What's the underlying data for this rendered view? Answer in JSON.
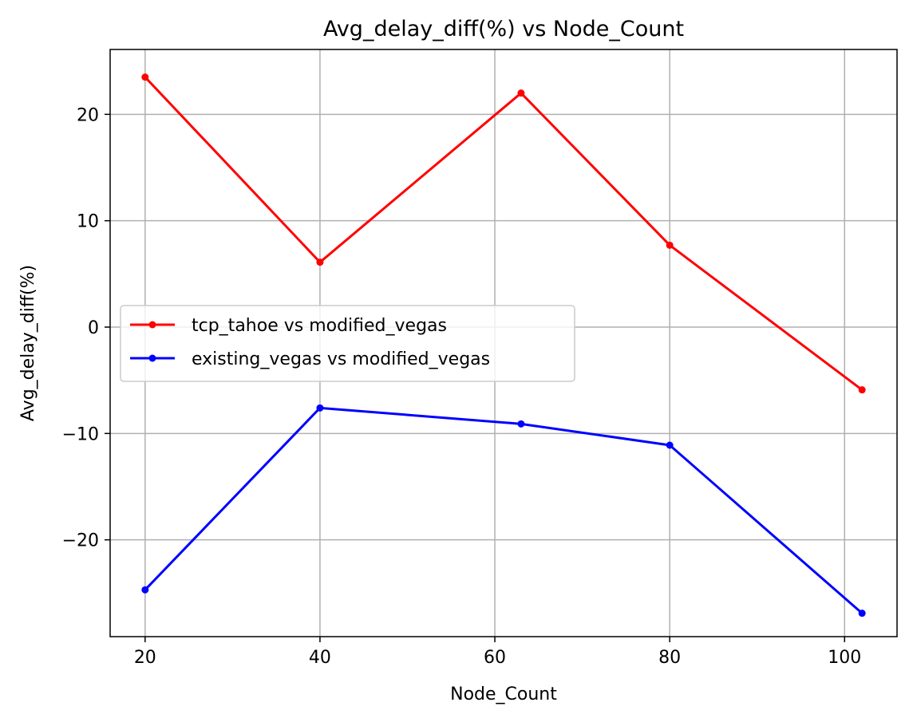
{
  "chart_data": {
    "type": "line",
    "title": "Avg_delay_diff(%) vs Node_Count",
    "xlabel": "Node_Count",
    "ylabel": "Avg_delay_diff(%)",
    "x": [
      20,
      40,
      63,
      80,
      102
    ],
    "xlim": [
      16,
      106
    ],
    "ylim": [
      -29.1,
      26.1
    ],
    "xticks": [
      20,
      40,
      60,
      80,
      100
    ],
    "xtick_labels": [
      "20",
      "40",
      "60",
      "80",
      "100"
    ],
    "yticks": [
      20,
      10,
      0,
      -10,
      -20
    ],
    "ytick_labels": [
      "20",
      "10",
      "0",
      "−10",
      "−20"
    ],
    "grid": true,
    "legend_position": "center-left",
    "series": [
      {
        "name": "tcp_tahoe vs modified_vegas",
        "color": "#ff0000",
        "marker": "circle",
        "values": [
          23.5,
          6.1,
          22.0,
          7.7,
          -5.9
        ]
      },
      {
        "name": "existing_vegas vs modified_vegas",
        "color": "#0000ff",
        "marker": "circle",
        "values": [
          -24.7,
          -7.6,
          -9.1,
          -11.1,
          -26.9
        ]
      }
    ]
  }
}
